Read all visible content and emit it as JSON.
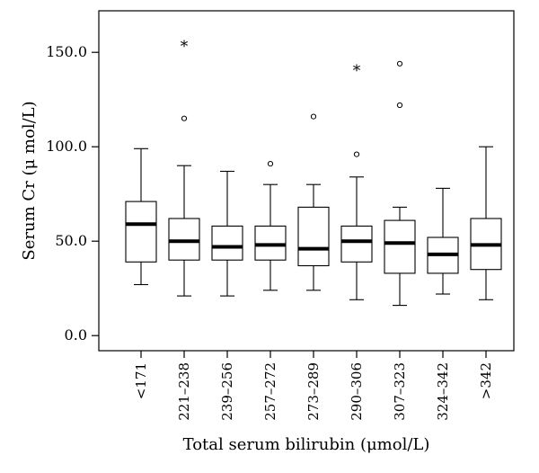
{
  "chart_data": {
    "type": "boxplot",
    "title": "",
    "xlabel": "Total serum bilirubin (μmol/L)",
    "ylabel": "Serum Cr (μ mol/L)",
    "ylim": [
      -8,
      172
    ],
    "yticks": [
      "0.0",
      "50.0",
      "100.0",
      "150.0"
    ],
    "ytick_values": [
      0,
      50,
      100,
      150
    ],
    "grid": false,
    "categories": [
      "<171",
      "221–238",
      "239–256",
      "257–272",
      "273–289",
      "290–306",
      "307–323",
      "324–342",
      ">342"
    ],
    "boxes": [
      {
        "whisker_low": 27,
        "q1": 39,
        "median": 59,
        "q3": 71,
        "whisker_high": 99,
        "outliers": [],
        "extremes": []
      },
      {
        "whisker_low": 21,
        "q1": 40,
        "median": 50,
        "q3": 62,
        "whisker_high": 90,
        "outliers": [
          115
        ],
        "extremes": [
          154
        ]
      },
      {
        "whisker_low": 21,
        "q1": 40,
        "median": 47,
        "q3": 58,
        "whisker_high": 87,
        "outliers": [],
        "extremes": []
      },
      {
        "whisker_low": 24,
        "q1": 40,
        "median": 48,
        "q3": 58,
        "whisker_high": 80,
        "outliers": [
          91
        ],
        "extremes": []
      },
      {
        "whisker_low": 24,
        "q1": 37,
        "median": 46,
        "q3": 68,
        "whisker_high": 80,
        "outliers": [
          116
        ],
        "extremes": []
      },
      {
        "whisker_low": 19,
        "q1": 39,
        "median": 50,
        "q3": 58,
        "whisker_high": 84,
        "outliers": [
          96
        ],
        "extremes": [
          141
        ]
      },
      {
        "whisker_low": 16,
        "q1": 33,
        "median": 49,
        "q3": 61,
        "whisker_high": 68,
        "outliers": [
          122,
          144
        ],
        "extremes": []
      },
      {
        "whisker_low": 22,
        "q1": 33,
        "median": 43,
        "q3": 52,
        "whisker_high": 78,
        "outliers": [],
        "extremes": []
      },
      {
        "whisker_low": 19,
        "q1": 35,
        "median": 48,
        "q3": 62,
        "whisker_high": 100,
        "outliers": [],
        "extremes": []
      }
    ]
  }
}
